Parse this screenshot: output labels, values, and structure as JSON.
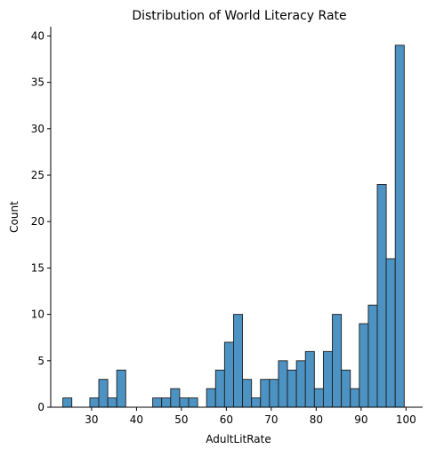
{
  "chart_data": {
    "type": "bar",
    "title": "Distribution of World Literacy Rate",
    "xlabel": "AdultLitRate",
    "ylabel": "Count",
    "xlim": [
      20.9,
      103.7
    ],
    "ylim": [
      0,
      41
    ],
    "xticks": [
      30,
      40,
      50,
      60,
      70,
      80,
      90,
      100
    ],
    "yticks": [
      0,
      5,
      10,
      15,
      20,
      25,
      30,
      35,
      40
    ],
    "grid": false,
    "bar_color": "#4c92c3",
    "bar_edge_color": "#1f1f1f",
    "bins": [
      {
        "x0": 23.6,
        "x1": 25.6,
        "count": 1
      },
      {
        "x0": 25.6,
        "x1": 27.6,
        "count": 0
      },
      {
        "x0": 27.6,
        "x1": 29.6,
        "count": 0
      },
      {
        "x0": 29.6,
        "x1": 31.6,
        "count": 1
      },
      {
        "x0": 31.6,
        "x1": 33.6,
        "count": 3
      },
      {
        "x0": 33.6,
        "x1": 35.6,
        "count": 1
      },
      {
        "x0": 35.6,
        "x1": 37.6,
        "count": 4
      },
      {
        "x0": 37.6,
        "x1": 39.6,
        "count": 0
      },
      {
        "x0": 39.6,
        "x1": 41.6,
        "count": 0
      },
      {
        "x0": 41.6,
        "x1": 43.6,
        "count": 0
      },
      {
        "x0": 43.6,
        "x1": 45.6,
        "count": 1
      },
      {
        "x0": 45.6,
        "x1": 47.6,
        "count": 1
      },
      {
        "x0": 47.6,
        "x1": 49.6,
        "count": 2
      },
      {
        "x0": 49.6,
        "x1": 51.6,
        "count": 1
      },
      {
        "x0": 51.6,
        "x1": 53.6,
        "count": 1
      },
      {
        "x0": 53.6,
        "x1": 55.6,
        "count": 0
      },
      {
        "x0": 55.6,
        "x1": 57.6,
        "count": 2
      },
      {
        "x0": 57.6,
        "x1": 59.6,
        "count": 4
      },
      {
        "x0": 59.6,
        "x1": 61.6,
        "count": 7
      },
      {
        "x0": 61.6,
        "x1": 63.6,
        "count": 10
      },
      {
        "x0": 63.6,
        "x1": 65.6,
        "count": 3
      },
      {
        "x0": 65.6,
        "x1": 67.6,
        "count": 1
      },
      {
        "x0": 67.6,
        "x1": 69.6,
        "count": 3
      },
      {
        "x0": 69.6,
        "x1": 71.6,
        "count": 3
      },
      {
        "x0": 71.6,
        "x1": 73.6,
        "count": 5
      },
      {
        "x0": 73.6,
        "x1": 75.6,
        "count": 4
      },
      {
        "x0": 75.6,
        "x1": 77.6,
        "count": 5
      },
      {
        "x0": 77.6,
        "x1": 79.6,
        "count": 6
      },
      {
        "x0": 79.6,
        "x1": 81.6,
        "count": 2
      },
      {
        "x0": 81.6,
        "x1": 83.6,
        "count": 6
      },
      {
        "x0": 83.6,
        "x1": 85.6,
        "count": 10
      },
      {
        "x0": 85.6,
        "x1": 87.6,
        "count": 4
      },
      {
        "x0": 87.6,
        "x1": 89.6,
        "count": 2
      },
      {
        "x0": 89.6,
        "x1": 91.6,
        "count": 9
      },
      {
        "x0": 91.6,
        "x1": 93.6,
        "count": 11
      },
      {
        "x0": 93.6,
        "x1": 95.6,
        "count": 24
      },
      {
        "x0": 95.6,
        "x1": 97.6,
        "count": 16
      },
      {
        "x0": 97.6,
        "x1": 99.6,
        "count": 39
      }
    ]
  }
}
